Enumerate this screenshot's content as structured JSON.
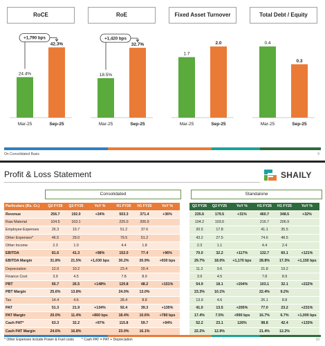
{
  "colors": {
    "orange": "#e97b37",
    "green": "#5aaa3c",
    "dark_green": "#2e6b3c",
    "blue": "#2f7fc1",
    "teal": "#1aa39a"
  },
  "slide1": {
    "footnote": "On Consolidated Basis",
    "page": "9",
    "chart_data": [
      {
        "type": "bar",
        "title": "RoCE",
        "categories": [
          "Mar-25",
          "Sep-25"
        ],
        "values": [
          24.4,
          42.3
        ],
        "labels": [
          "24.4%",
          "42.3%"
        ],
        "colors": [
          "#5aaa3c",
          "#e97b37"
        ],
        "ylim": [
          0,
          45
        ],
        "annotation": "+1,790 bps"
      },
      {
        "type": "bar",
        "title": "RoE",
        "categories": [
          "Mar-25",
          "Sep-25"
        ],
        "values": [
          18.5,
          32.7
        ],
        "labels": [
          "18.5%",
          "32.7%"
        ],
        "colors": [
          "#5aaa3c",
          "#e97b37"
        ],
        "ylim": [
          0,
          35
        ],
        "annotation": "+1,420 bps"
      },
      {
        "type": "bar",
        "title": "Fixed Asset Turnover",
        "categories": [
          "Mar-25",
          "Sep-25"
        ],
        "values": [
          1.7,
          2.0
        ],
        "labels": [
          "1.7",
          "2.0"
        ],
        "colors": [
          "#5aaa3c",
          "#e97b37"
        ],
        "ylim": [
          0,
          2.1
        ],
        "annotation": ""
      },
      {
        "type": "bar",
        "title": "Total Debt / Equity",
        "categories": [
          "Mar-25",
          "Sep-25"
        ],
        "values": [
          0.4,
          0.3
        ],
        "labels": [
          "0.4",
          "0.3"
        ],
        "colors": [
          "#5aaa3c",
          "#e97b37"
        ],
        "ylim": [
          0,
          0.42
        ],
        "annotation": ""
      }
    ]
  },
  "slide2": {
    "title": "Profit & Loss Statement",
    "logo_text": "SHAILY",
    "section_consolidated": "Consolidated",
    "section_standalone": "Standalone",
    "footnote_1": "* Other Expenses include Power & Fuel costs",
    "footnote_2": "* Cash PAT = PAT + Depreciation",
    "page": "10",
    "headers": {
      "label": "Particulars (Rs. Cr.)",
      "cons": [
        "Q2 FY26",
        "Q2 FY25",
        "YoY %",
        "H1 FY26",
        "H1 FY25",
        "YoY %"
      ],
      "stand": [
        "Q2 FY26",
        "Q2 FY25",
        "YoY %",
        "H1 FY26",
        "H1 FY25",
        "YoY %"
      ]
    },
    "rows": [
      {
        "label": "Revenue",
        "bold": true,
        "cons": [
          "256.7",
          "192.0",
          "+34%",
          "503.3",
          "371.4",
          "+36%"
        ],
        "stand": [
          "235.6",
          "179.5",
          "+31%",
          "460.7",
          "348.5",
          "+32%"
        ]
      },
      {
        "label": "Raw Material",
        "bold": false,
        "cons": [
          "104.5",
          "103.1",
          "",
          "225.0",
          "206.9",
          ""
        ],
        "stand": [
          "104.2",
          "103.0",
          "",
          "216.7",
          "206.9",
          ""
        ]
      },
      {
        "label": "Employee Expenses",
        "bold": false,
        "cons": [
          "26.3",
          "19.7",
          "",
          "51.2",
          "37.6",
          ""
        ],
        "stand": [
          "20.5",
          "17.8",
          "",
          "41.1",
          "35.5",
          ""
        ]
      },
      {
        "label": "Other Expenses*",
        "bold": false,
        "cons": [
          "46.5",
          "29.0",
          "",
          "79.5",
          "51.2",
          ""
        ],
        "stand": [
          "43.2",
          "27.5",
          "",
          "74.6",
          "48.5",
          ""
        ]
      },
      {
        "label": "Other Income",
        "bold": false,
        "cons": [
          "2.3",
          "1.0",
          "",
          "4.4",
          "1.8",
          ""
        ],
        "stand": [
          "2.3",
          "1.1",
          "",
          "4.4",
          "2.4",
          ""
        ]
      },
      {
        "label": "EBITDA",
        "bold": true,
        "cons": [
          "81.6",
          "41.3",
          "+98%",
          "152.0",
          "77.4",
          "+96%"
        ],
        "stand": [
          "70.0",
          "32.2",
          "+117%",
          "132.7",
          "60.1",
          "+121%"
        ]
      },
      {
        "label": "EBITDA Margin",
        "bold": true,
        "cons": [
          "31.8%",
          "21.5%",
          "+1,030 bps",
          "30.2%",
          "20.9%",
          "+930 bps"
        ],
        "stand": [
          "29.7%",
          "18.0%",
          "+1,170 bps",
          "28.8%",
          "17.3%",
          "+1,150 bps"
        ]
      },
      {
        "label": "Depreciation",
        "bold": false,
        "cons": [
          "12.0",
          "10.2",
          "",
          "23.4",
          "20.4",
          ""
        ],
        "stand": [
          "11.2",
          "9.6",
          "",
          "21.8",
          "19.2",
          ""
        ]
      },
      {
        "label": "Finance Cost",
        "bold": false,
        "cons": [
          "3.9",
          "4.5",
          "",
          "7.8",
          "8.9",
          ""
        ],
        "stand": [
          "3.9",
          "4.5",
          "",
          "7.8",
          "8.9",
          ""
        ]
      },
      {
        "label": "PBT",
        "bold": true,
        "cons": [
          "65.7",
          "26.5",
          "+148%",
          "120.8",
          "48.2",
          "+151%"
        ],
        "stand": [
          "54.9",
          "18.1",
          "+204%",
          "103.1",
          "32.1",
          "+222%"
        ]
      },
      {
        "label": "PBT Margin",
        "bold": true,
        "cons": [
          "25.6%",
          "13.8%",
          "",
          "24.0%",
          "13.0%",
          ""
        ],
        "stand": [
          "23.3%",
          "10.1%",
          "",
          "22.4%",
          "9.2%",
          ""
        ]
      },
      {
        "label": "Tax",
        "bold": false,
        "cons": [
          "14.4",
          "4.6",
          "",
          "28.4",
          "8.8",
          ""
        ],
        "stand": [
          "13.9",
          "4.6",
          "",
          "26.1",
          "8.8",
          ""
        ]
      },
      {
        "label": "PAT",
        "bold": true,
        "cons": [
          "51.3",
          "21.9",
          "+134%",
          "92.4",
          "39.3",
          "+135%"
        ],
        "stand": [
          "41.0",
          "13.5",
          "+205%",
          "77.0",
          "23.2",
          "+231%"
        ]
      },
      {
        "label": "PAT Margin",
        "bold": true,
        "cons": [
          "20.0%",
          "11.4%",
          "+860 bps",
          "18.4%",
          "10.6%",
          "+780 bps"
        ],
        "stand": [
          "17.4%",
          "7.5%",
          "+990 bps",
          "16.7%",
          "6.7%",
          "+1,000 bps"
        ]
      },
      {
        "label": "Cash PAT*",
        "bold": true,
        "cons": [
          "63.3",
          "32.2",
          "+97%",
          "115.8",
          "59.7",
          "+94%"
        ],
        "stand": [
          "52.2",
          "23.1",
          "126%",
          "98.8",
          "42.4",
          "+133%"
        ]
      },
      {
        "label": "Cash PAT Margin",
        "bold": true,
        "cons": [
          "24.6%",
          "16.8%",
          "",
          "23.0%",
          "16.1%",
          ""
        ],
        "stand": [
          "22.2%",
          "12.9%",
          "",
          "21.4%",
          "12.2%",
          ""
        ]
      }
    ]
  }
}
